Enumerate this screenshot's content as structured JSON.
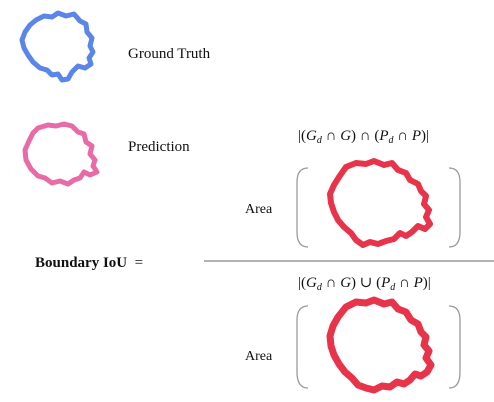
{
  "legend": {
    "ground_truth": {
      "label": "Ground Truth",
      "icon": "blue-contour-icon",
      "color": "#5b86e8"
    },
    "prediction": {
      "label": "Prediction",
      "icon": "pink-contour-icon",
      "color": "#e86aa6"
    }
  },
  "equation": {
    "label": "Boundary IoU",
    "equals": "=",
    "numerator": {
      "expression_parts": [
        "|(",
        "G",
        "d",
        " ∩ ",
        "G",
        ") ∩ (",
        "P",
        "d",
        " ∩ ",
        "P",
        ")|"
      ],
      "area_label": "Area",
      "shape_icon": "intersection-contour-icon"
    },
    "denominator": {
      "expression_parts": [
        "|(",
        "G",
        "d",
        " ∩ ",
        "G",
        ") ∪ (",
        "P",
        "d",
        " ∩ ",
        "P",
        ")|"
      ],
      "area_label": "Area",
      "shape_icon": "union-contour-icon"
    },
    "result_color": "#e8344a"
  }
}
